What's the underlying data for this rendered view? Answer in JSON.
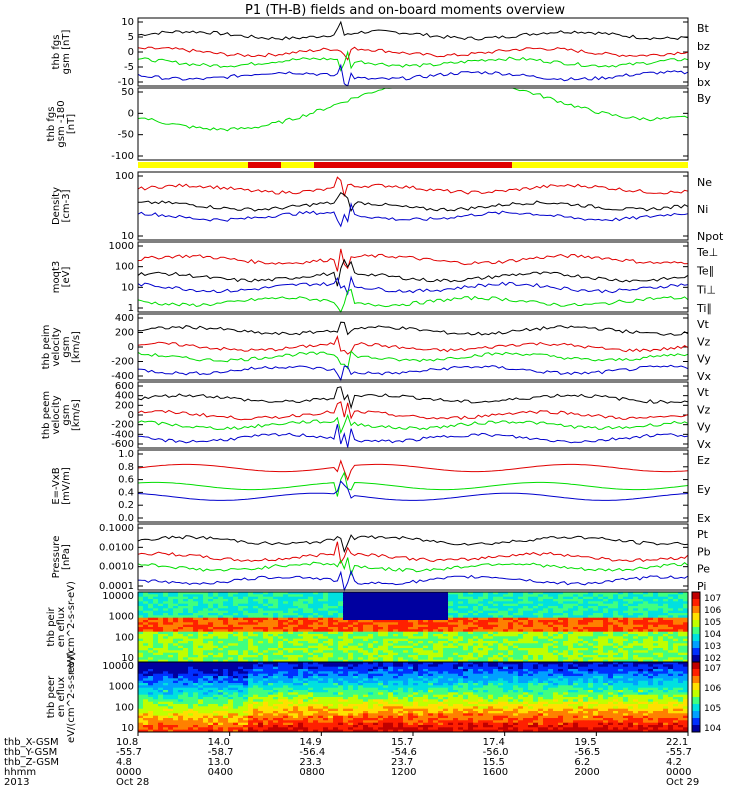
{
  "title": "P1 (TH-B) fields and on-board moments overview",
  "colors": {
    "black": "#000000",
    "red": "#e00000",
    "green": "#00dd00",
    "blue": "#0000cc",
    "bar_yellow": "#ffff00",
    "bar_red": "#e00000"
  },
  "chart_data": [
    {
      "type": "line",
      "ylabel": "thb fgs gsm [nT]",
      "yticks": [
        "10",
        "5",
        "0",
        "-5",
        "-10"
      ],
      "ylim": [
        -10,
        10
      ],
      "series": [
        {
          "name": "Bt",
          "color": "black"
        },
        {
          "name": "bz",
          "color": "red"
        },
        {
          "name": "by",
          "color": "green"
        },
        {
          "name": "bx",
          "color": "blue"
        }
      ]
    },
    {
      "type": "line",
      "ylabel": "thb fgs gsm -180 [nT]",
      "yticks": [
        "50",
        "0",
        "-50",
        "-100"
      ],
      "ylim": [
        -130,
        80
      ],
      "series": [
        {
          "name": "By",
          "color": "green"
        }
      ]
    },
    {
      "type": "line",
      "scale": "log",
      "ylabel": "Density [cm-3]",
      "yticks": [
        "100",
        "10"
      ],
      "series": [
        {
          "name": "Ne",
          "color": "red"
        },
        {
          "name": "Ni",
          "color": "black"
        },
        {
          "name": "Npot",
          "color": "blue"
        }
      ]
    },
    {
      "type": "line",
      "scale": "log",
      "ylabel": "moqt3 [eV]",
      "yticks": [
        "1000",
        "100",
        "10",
        "1"
      ],
      "series": [
        {
          "name": "Te⊥",
          "color": "red"
        },
        {
          "name": "Te∥",
          "color": "black"
        },
        {
          "name": "Ti⊥",
          "color": "blue"
        },
        {
          "name": "Ti∥",
          "color": "green"
        }
      ]
    },
    {
      "type": "line",
      "ylabel": "thb peim velocity gsm [km/s]",
      "yticks": [
        "400",
        "200",
        "0",
        "-200",
        "-400"
      ],
      "ylim": [
        -400,
        400
      ],
      "series": [
        {
          "name": "Vt",
          "color": "black"
        },
        {
          "name": "Vz",
          "color": "red"
        },
        {
          "name": "Vy",
          "color": "green"
        },
        {
          "name": "Vx",
          "color": "blue"
        }
      ]
    },
    {
      "type": "line",
      "ylabel": "thb peem velocity gsm [km/s]",
      "yticks": [
        "600",
        "400",
        "200",
        "0",
        "-200",
        "-400",
        "-600"
      ],
      "ylim": [
        -600,
        600
      ],
      "series": [
        {
          "name": "Vt",
          "color": "black"
        },
        {
          "name": "Vz",
          "color": "red"
        },
        {
          "name": "Vy",
          "color": "green"
        },
        {
          "name": "Vx",
          "color": "blue"
        }
      ]
    },
    {
      "type": "line",
      "ylabel": "E=-VxB [mV/m]",
      "yticks": [
        "1.0",
        "0.8",
        "0.6",
        "0.4",
        "0.2",
        "0.0"
      ],
      "ylim": [
        0,
        1
      ],
      "series": [
        {
          "name": "Ez",
          "color": "red"
        },
        {
          "name": "Ey",
          "color": "green"
        },
        {
          "name": "Ex",
          "color": "blue"
        }
      ]
    },
    {
      "type": "line",
      "scale": "log",
      "ylabel": "Pressure [nPa]",
      "yticks": [
        "0.1000",
        "0.0100",
        "0.0010",
        "0.0001"
      ],
      "series": [
        {
          "name": "Pt",
          "color": "black"
        },
        {
          "name": "Pb",
          "color": "red"
        },
        {
          "name": "Pe",
          "color": "green"
        },
        {
          "name": "Pi",
          "color": "blue"
        }
      ]
    },
    {
      "type": "heatmap",
      "ylabel": "thb peir en eflux eV/(cm^2-s-sr-eV)",
      "yticks": [
        "10000",
        "1000",
        "100",
        "10"
      ],
      "colorbar": [
        "10^7",
        "10^6",
        "10^5",
        "10^4",
        "10^3",
        "10^2"
      ]
    },
    {
      "type": "heatmap",
      "ylabel": "thb peer en eflux eV/(cm^2-s-sr-eV)",
      "yticks": [
        "10000",
        "1000",
        "100",
        "10"
      ],
      "colorbar": [
        "10^7",
        "10^6",
        "10^5",
        "10^4"
      ]
    }
  ],
  "xaxis": {
    "row_labels": [
      "thb_X-GSM",
      "thb_Y-GSM",
      "thb_Z-GSM",
      "hhmm",
      "2013"
    ],
    "columns": [
      [
        "10.8",
        "-55.7",
        "4.8",
        "0000",
        "Oct 28"
      ],
      [
        "14.0",
        "-58.7",
        "13.0",
        "0400",
        ""
      ],
      [
        "14.9",
        "-56.4",
        "23.3",
        "0800",
        ""
      ],
      [
        "15.7",
        "-54.6",
        "23.7",
        "1200",
        ""
      ],
      [
        "17.4",
        "-56.0",
        "15.5",
        "1600",
        ""
      ],
      [
        "19.5",
        "-56.5",
        "6.2",
        "2000",
        ""
      ],
      [
        "22.1",
        "-55.7",
        "4.2",
        "0000",
        "Oct 29"
      ]
    ]
  }
}
